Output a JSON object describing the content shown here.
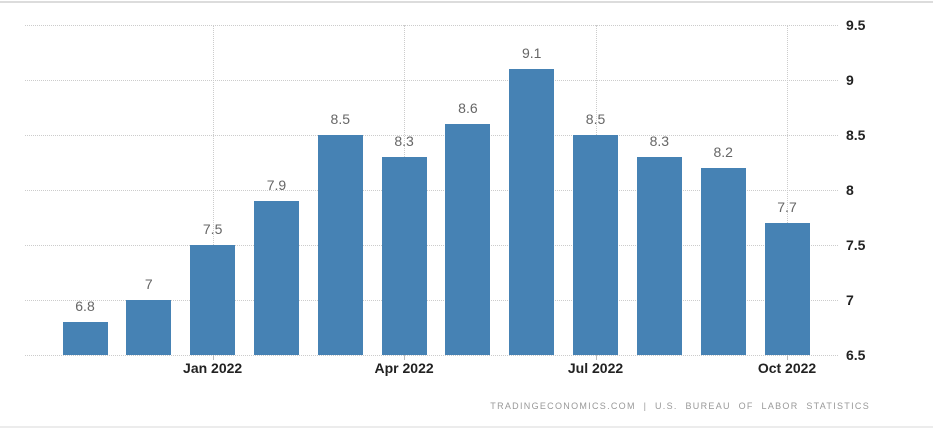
{
  "chart_data": {
    "type": "bar",
    "title": "",
    "xlabel": "",
    "ylabel": "",
    "values": [
      6.8,
      7,
      7.5,
      7.9,
      8.5,
      8.3,
      8.6,
      9.1,
      8.5,
      8.3,
      8.2,
      7.7
    ],
    "bar_labels": [
      "6.8",
      "7",
      "7.5",
      "7.9",
      "8.5",
      "8.3",
      "8.6",
      "9.1",
      "8.5",
      "8.3",
      "8.2",
      "7.7"
    ],
    "x_ticks": [
      {
        "index": 2,
        "label": "Jan 2022"
      },
      {
        "index": 5,
        "label": "Apr 2022"
      },
      {
        "index": 8,
        "label": "Jul 2022"
      },
      {
        "index": 11,
        "label": "Oct 2022"
      }
    ],
    "y_ticks": [
      {
        "value": 9.5,
        "label": "9.5"
      },
      {
        "value": 9,
        "label": "9"
      },
      {
        "value": 8.5,
        "label": "8.5"
      },
      {
        "value": 8,
        "label": "8"
      },
      {
        "value": 7.5,
        "label": "7.5"
      },
      {
        "value": 7,
        "label": "7"
      },
      {
        "value": 6.5,
        "label": "6.5"
      }
    ],
    "ylim": [
      6.5,
      9.5
    ],
    "y_axis_side": "right",
    "grid": "dotted; horizontal at every y tick, vertical at quarter x ticks",
    "legend": "none",
    "colors": {
      "bar": "#4682b4",
      "value_label": "#666666",
      "axis_label": "#222222",
      "gridline": "#cccccc",
      "tick_mark": "#bbbbbb",
      "attribution": "#999999",
      "border": "#dcdcdc"
    }
  },
  "footer": {
    "attribution": "TRADINGECONOMICS.COM | U.S. BUREAU OF LABOR STATISTICS"
  }
}
